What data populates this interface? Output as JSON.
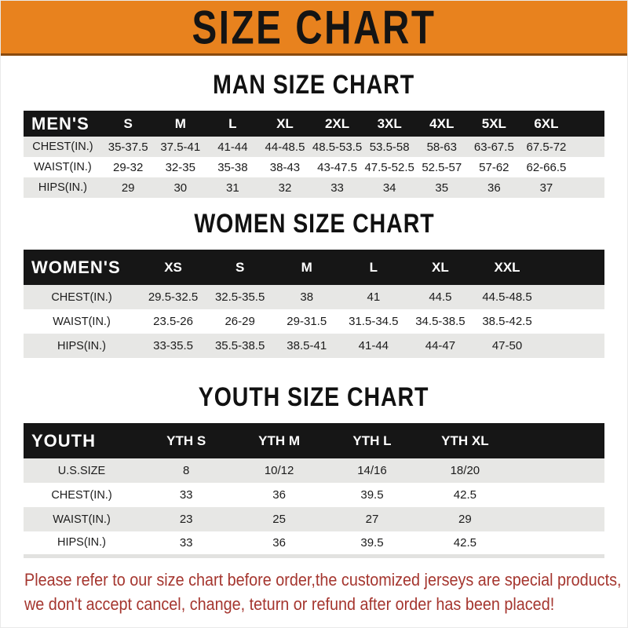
{
  "banner": {
    "title": "SIZE CHART"
  },
  "sections": [
    {
      "title": "MAN SIZE CHART",
      "header": {
        "label": "MEN'S",
        "columns": [
          "S",
          "M",
          "L",
          "XL",
          "2XL",
          "3XL",
          "4XL",
          "5XL",
          "6XL"
        ]
      },
      "rows": [
        {
          "label": "CHEST(IN.)",
          "values": [
            "35-37.5",
            "37.5-41",
            "41-44",
            "44-48.5",
            "48.5-53.5",
            "53.5-58",
            "58-63",
            "63-67.5",
            "67.5-72"
          ]
        },
        {
          "label": "WAIST(IN.)",
          "values": [
            "29-32",
            "32-35",
            "35-38",
            "38-43",
            "43-47.5",
            "47.5-52.5",
            "52.5-57",
            "57-62",
            "62-66.5"
          ]
        },
        {
          "label": "HIPS(IN.)",
          "values": [
            "29",
            "30",
            "31",
            "32",
            "33",
            "34",
            "35",
            "36",
            "37"
          ]
        }
      ]
    },
    {
      "title": "WOMEN SIZE CHART",
      "header": {
        "label": "WOMEN'S",
        "columns": [
          "XS",
          "S",
          "M",
          "L",
          "XL",
          "XXL"
        ]
      },
      "rows": [
        {
          "label": "CHEST(IN.)",
          "values": [
            "29.5-32.5",
            "32.5-35.5",
            "38",
            "41",
            "44.5",
            "44.5-48.5"
          ]
        },
        {
          "label": "WAIST(IN.)",
          "values": [
            "23.5-26",
            "26-29",
            "29-31.5",
            "31.5-34.5",
            "34.5-38.5",
            "38.5-42.5"
          ]
        },
        {
          "label": "HIPS(IN.)",
          "values": [
            "33-35.5",
            "35.5-38.5",
            "38.5-41",
            "41-44",
            "44-47",
            "47-50"
          ]
        }
      ]
    },
    {
      "title": "YOUTH SIZE CHART",
      "header": {
        "label": "YOUTH",
        "columns": [
          "YTH S",
          "YTH M",
          "YTH L",
          "YTH XL"
        ]
      },
      "rows": [
        {
          "label": "U.S.SIZE",
          "values": [
            "8",
            "10/12",
            "14/16",
            "18/20"
          ]
        },
        {
          "label": "CHEST(IN.)",
          "values": [
            "33",
            "36",
            "39.5",
            "42.5"
          ]
        },
        {
          "label": "WAIST(IN.)",
          "values": [
            "23",
            "25",
            "27",
            "29"
          ]
        },
        {
          "label": "HIPS(IN.)",
          "values": [
            "33",
            "36",
            "39.5",
            "42.5"
          ]
        }
      ]
    }
  ],
  "footer": {
    "line1": "Please refer to our size chart before order,the customized jerseys are special products,",
    "line2": "we don't accept cancel, change, teturn or refund after order has been placed!"
  },
  "colors": {
    "banner_bg": "#E8821E",
    "band_bg": "#161616",
    "stripe_gray": "#E7E7E5",
    "footer_red": "#A5362F",
    "title_black": "#111111"
  }
}
